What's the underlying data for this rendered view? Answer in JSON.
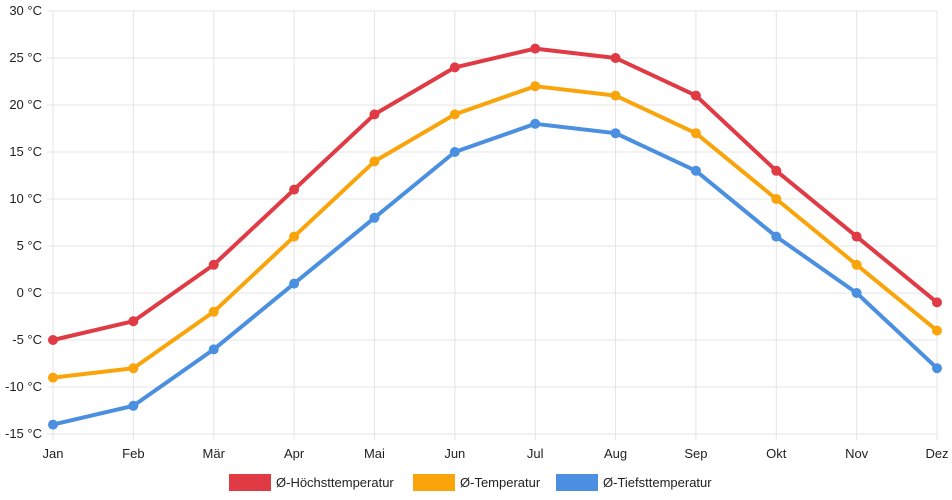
{
  "chart_data": {
    "type": "line",
    "categories": [
      "Jan",
      "Feb",
      "Mär",
      "Apr",
      "Mai",
      "Jun",
      "Jul",
      "Aug",
      "Sep",
      "Okt",
      "Nov",
      "Dez"
    ],
    "series": [
      {
        "name": "Ø-Höchsttemperatur",
        "color": "#e03a45",
        "values": [
          -5,
          -3,
          3,
          11,
          19,
          24,
          26,
          25,
          21,
          13,
          6,
          -1
        ]
      },
      {
        "name": "Ø-Temperatur",
        "color": "#f9a40a",
        "values": [
          -9,
          -8,
          -2,
          6,
          14,
          19,
          22,
          21,
          17,
          10,
          3,
          -4
        ]
      },
      {
        "name": "Ø-Tiefsttemperatur",
        "color": "#4a8fe0",
        "values": [
          -14,
          -12,
          -6,
          1,
          8,
          15,
          18,
          17,
          13,
          6,
          0,
          -8
        ]
      }
    ],
    "yticks": [
      "30 °C",
      "25 °C",
      "20 °C",
      "15 °C",
      "10 °C",
      "5 °C",
      "0 °C",
      "-5 °C",
      "-10 °C",
      "-15 °C"
    ],
    "ylim": [
      -15,
      30
    ],
    "grid": true,
    "legend_position": "bottom"
  }
}
